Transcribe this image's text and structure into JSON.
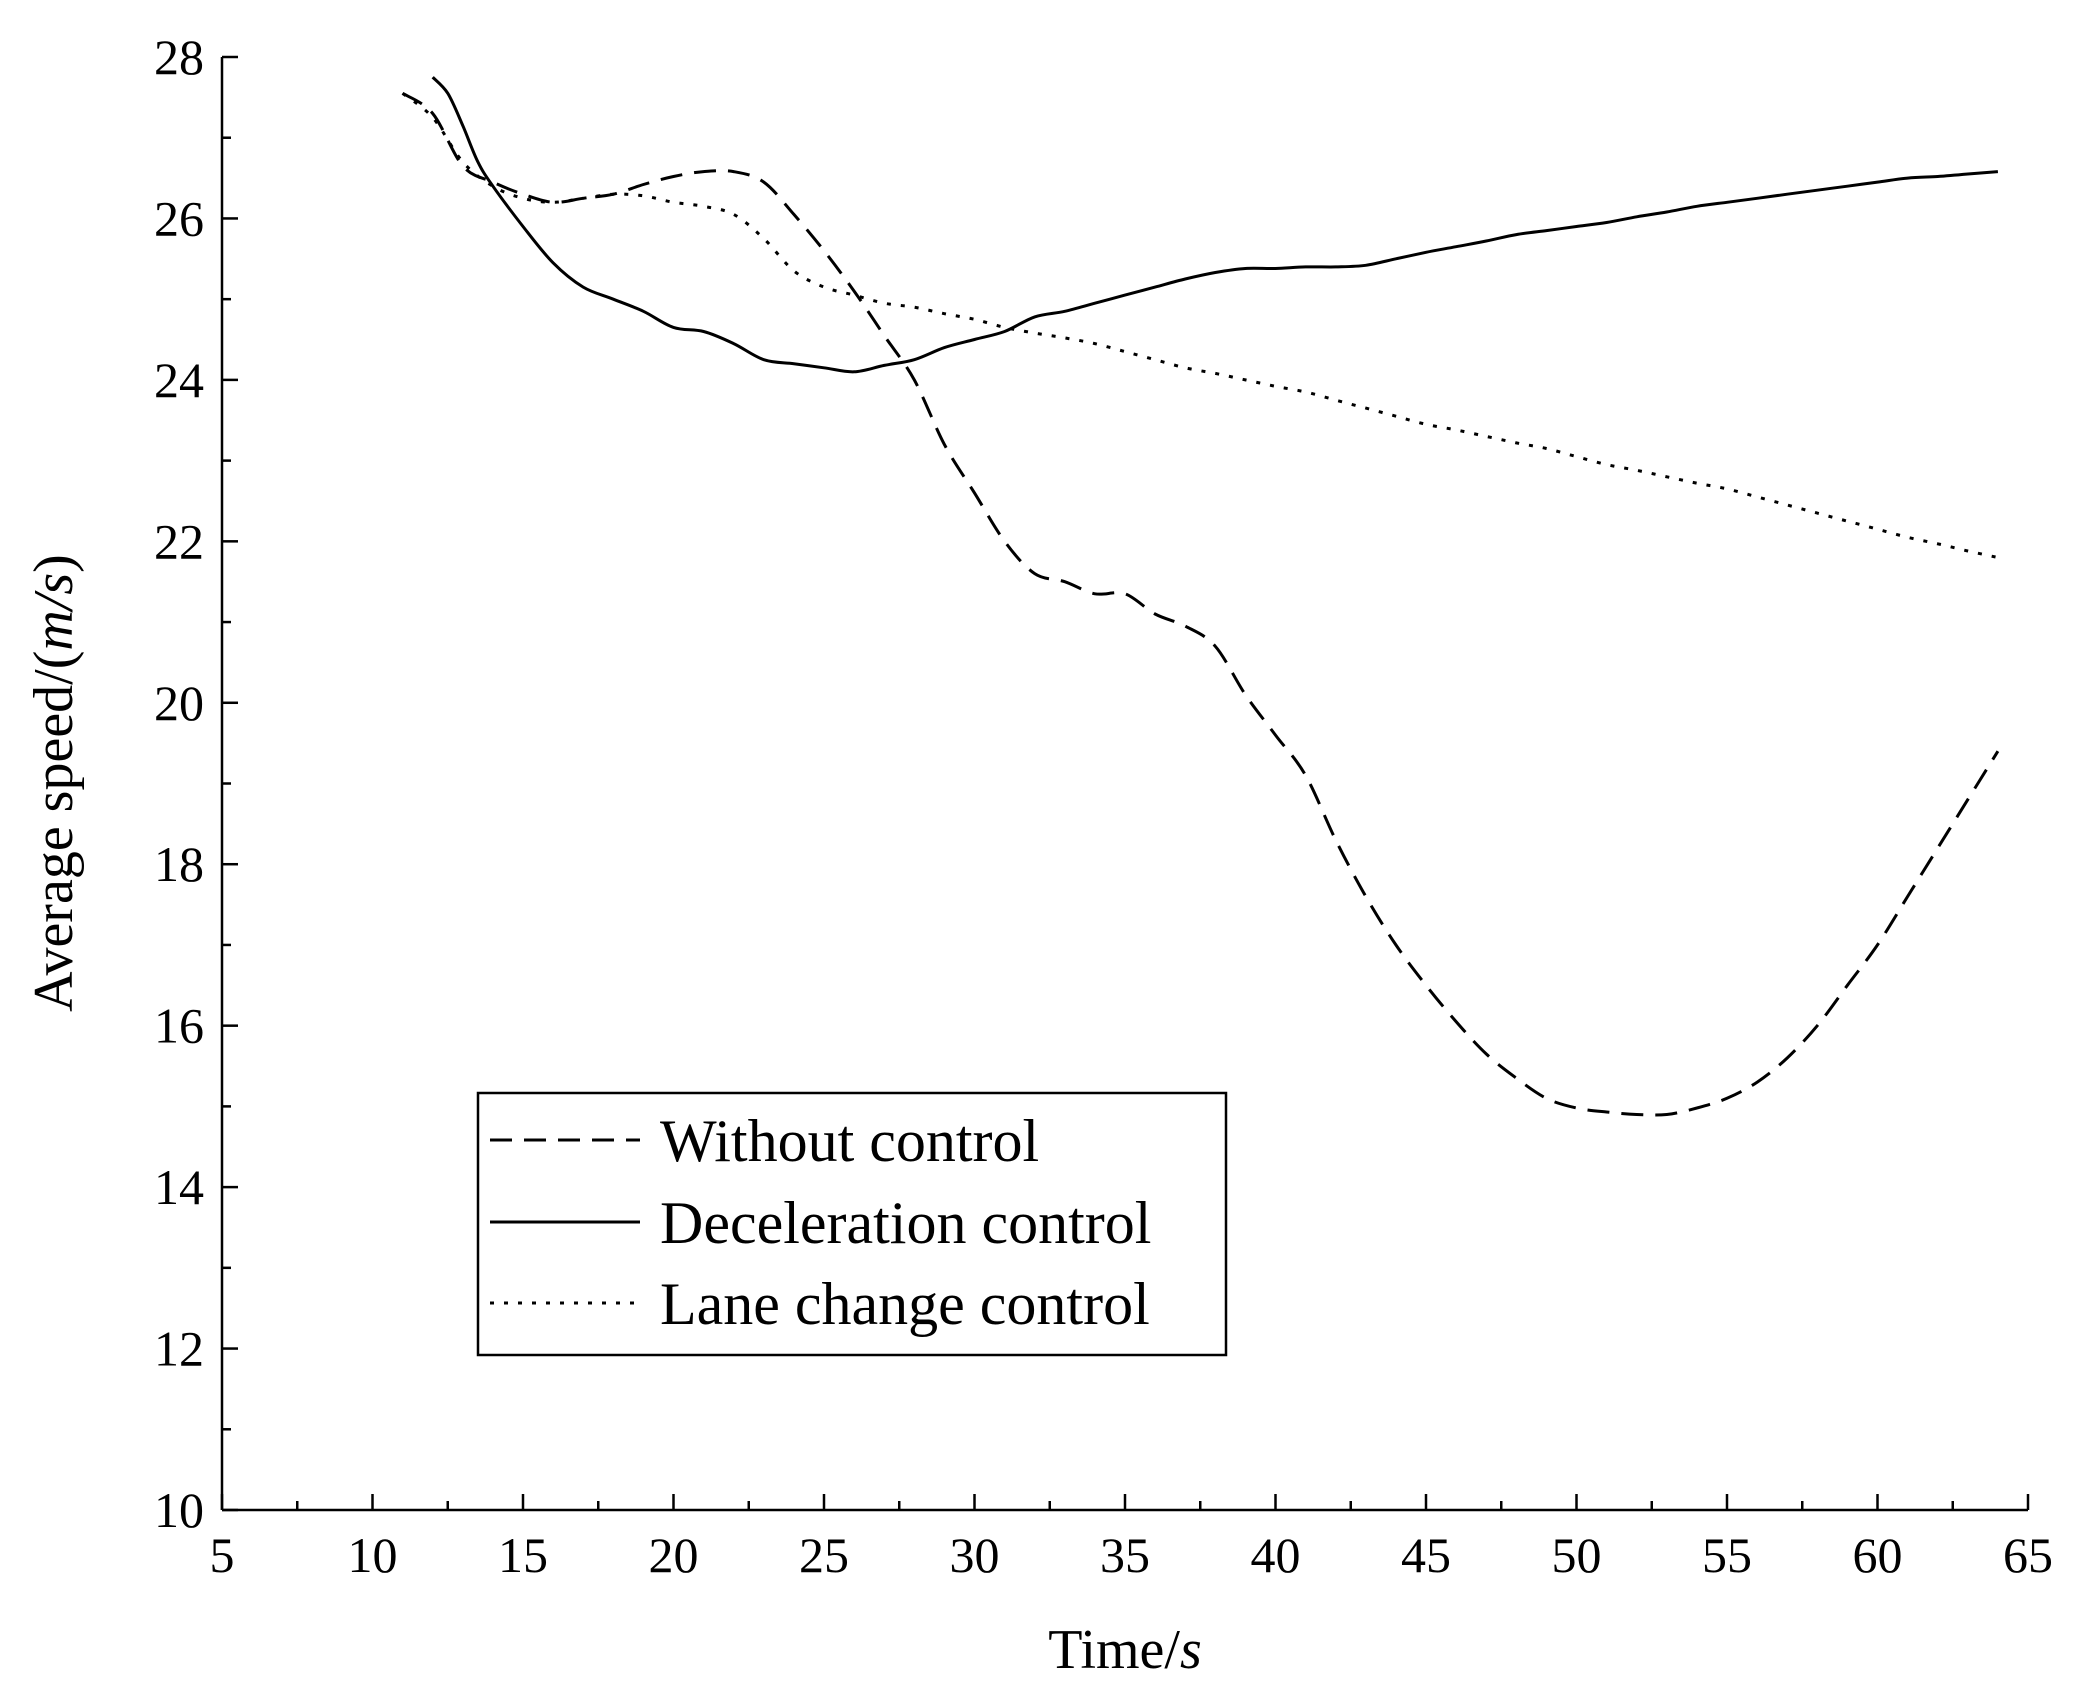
{
  "chart_data": {
    "type": "line",
    "title": "",
    "xlabel": "Time/",
    "xlabel_unit": "s",
    "ylabel": "Average speed/(",
    "ylabel_unit": "m/s",
    "ylabel_close": ")",
    "xlim": [
      5,
      65
    ],
    "ylim": [
      10,
      28
    ],
    "xticks": [
      5,
      10,
      15,
      20,
      25,
      30,
      35,
      40,
      45,
      50,
      55,
      60,
      65
    ],
    "yticks": [
      10,
      12,
      14,
      16,
      18,
      20,
      22,
      24,
      26,
      28
    ],
    "legend_position": "lower-left",
    "series": [
      {
        "name": "Without control",
        "style": "dashed",
        "x": [
          11,
          12,
          13,
          14,
          15,
          16,
          17,
          18,
          19,
          20,
          21,
          22,
          23,
          24,
          25,
          26,
          27,
          28,
          29,
          30,
          31,
          32,
          33,
          34,
          35,
          36,
          37,
          38,
          39,
          40,
          41,
          42,
          43,
          44,
          45,
          46,
          47,
          48,
          49,
          50,
          51,
          52,
          53,
          54,
          55,
          56,
          57,
          58,
          59,
          60,
          61,
          62,
          63,
          64
        ],
        "y": [
          27.55,
          27.3,
          26.65,
          26.45,
          26.3,
          26.2,
          26.25,
          26.3,
          26.42,
          26.52,
          26.58,
          26.58,
          26.45,
          26.05,
          25.6,
          25.1,
          24.55,
          24.0,
          23.2,
          22.6,
          22.0,
          21.6,
          21.5,
          21.35,
          21.35,
          21.1,
          20.95,
          20.7,
          20.1,
          19.6,
          19.1,
          18.3,
          17.6,
          17.0,
          16.5,
          16.05,
          15.65,
          15.35,
          15.1,
          14.98,
          14.93,
          14.9,
          14.9,
          14.98,
          15.1,
          15.3,
          15.6,
          16.0,
          16.5,
          17.0,
          17.6,
          18.2,
          18.8,
          19.4
        ]
      },
      {
        "name": "Deceleration control",
        "style": "solid",
        "x": [
          12,
          12.5,
          13,
          13.5,
          14,
          15,
          16,
          17,
          18,
          19,
          20,
          21,
          22,
          23,
          24,
          25,
          26,
          27,
          28,
          29,
          30,
          31,
          32,
          33,
          34,
          35,
          36,
          37,
          38,
          39,
          40,
          41,
          42,
          43,
          44,
          45,
          46,
          47,
          48,
          49,
          50,
          51,
          52,
          53,
          54,
          55,
          56,
          57,
          58,
          59,
          60,
          61,
          62,
          63,
          64
        ],
        "y": [
          27.75,
          27.55,
          27.15,
          26.7,
          26.4,
          25.9,
          25.45,
          25.15,
          25.0,
          24.85,
          24.65,
          24.6,
          24.45,
          24.25,
          24.2,
          24.15,
          24.1,
          24.18,
          24.25,
          24.4,
          24.5,
          24.6,
          24.78,
          24.85,
          24.95,
          25.05,
          25.15,
          25.25,
          25.33,
          25.38,
          25.38,
          25.4,
          25.4,
          25.42,
          25.5,
          25.58,
          25.65,
          25.72,
          25.8,
          25.85,
          25.9,
          25.95,
          26.02,
          26.08,
          26.15,
          26.2,
          26.25,
          26.3,
          26.35,
          26.4,
          26.45,
          26.5,
          26.52,
          26.55,
          26.58
        ]
      },
      {
        "name": "Lane change control",
        "style": "dotted",
        "x": [
          11,
          12,
          13,
          14,
          15,
          16,
          17,
          18,
          19,
          20,
          21,
          22,
          23,
          24,
          25,
          26,
          27,
          28,
          29,
          30,
          31,
          32,
          33,
          34,
          35,
          36,
          37,
          38,
          39,
          40,
          41,
          42,
          43,
          44,
          45,
          46,
          47,
          48,
          49,
          50,
          51,
          52,
          53,
          54,
          55,
          56,
          57,
          58,
          59,
          60,
          61,
          62,
          63,
          64
        ],
        "y": [
          27.55,
          27.25,
          26.7,
          26.4,
          26.25,
          26.2,
          26.25,
          26.3,
          26.28,
          26.2,
          26.15,
          26.05,
          25.75,
          25.35,
          25.15,
          25.05,
          24.95,
          24.9,
          24.82,
          24.75,
          24.65,
          24.58,
          24.52,
          24.45,
          24.35,
          24.25,
          24.15,
          24.08,
          24.0,
          23.92,
          23.85,
          23.75,
          23.65,
          23.55,
          23.45,
          23.38,
          23.3,
          23.22,
          23.15,
          23.05,
          22.95,
          22.88,
          22.8,
          22.72,
          22.65,
          22.55,
          22.45,
          22.35,
          22.25,
          22.15,
          22.05,
          21.97,
          21.88,
          21.8
        ]
      }
    ]
  }
}
